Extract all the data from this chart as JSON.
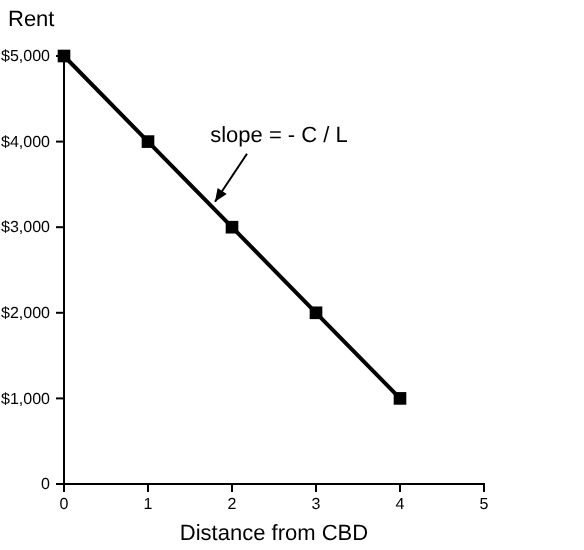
{
  "chart_data": {
    "type": "line",
    "xlabel": "Distance from CBD",
    "ylabel": "Rent",
    "x": [
      0,
      1,
      2,
      3,
      4
    ],
    "series": [
      {
        "color": "#000000",
        "values": [
          5000,
          4000,
          3000,
          2000,
          1000
        ]
      }
    ],
    "xlim": [
      0,
      5
    ],
    "xticks": [
      0,
      1,
      2,
      3,
      4,
      5
    ],
    "ylim": [
      0,
      5000
    ],
    "yticks": [
      {
        "value": 0,
        "label": "0"
      },
      {
        "value": 1000,
        "label": "$1,000"
      },
      {
        "value": 2000,
        "label": "$2,000"
      },
      {
        "value": 3000,
        "label": "$3,000"
      },
      {
        "value": 4000,
        "label": "$4,000"
      },
      {
        "value": 5000,
        "label": "$5,000"
      }
    ],
    "marker": "square",
    "line_style": "solid",
    "grid": false,
    "annotations": [
      {
        "text": "slope = - C / L",
        "x": 1.75,
        "y": 3250
      }
    ]
  }
}
